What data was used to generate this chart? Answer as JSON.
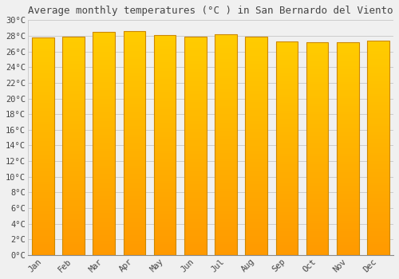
{
  "title": "Average monthly temperatures (°C ) in San Bernardo del Viento",
  "months": [
    "Jan",
    "Feb",
    "Mar",
    "Apr",
    "May",
    "Jun",
    "Jul",
    "Aug",
    "Sep",
    "Oct",
    "Nov",
    "Dec"
  ],
  "temperatures": [
    27.8,
    27.9,
    28.5,
    28.6,
    28.1,
    27.9,
    28.2,
    27.9,
    27.3,
    27.2,
    27.2,
    27.4
  ],
  "bar_color_top": "#FFCC00",
  "bar_color_bottom": "#FF9900",
  "bar_edge_color": "#CC8800",
  "background_color": "#F0F0F0",
  "grid_color": "#CCCCCC",
  "text_color": "#444444",
  "ylim": [
    0,
    30
  ],
  "ytick_step": 2,
  "title_fontsize": 9,
  "tick_fontsize": 7.5
}
